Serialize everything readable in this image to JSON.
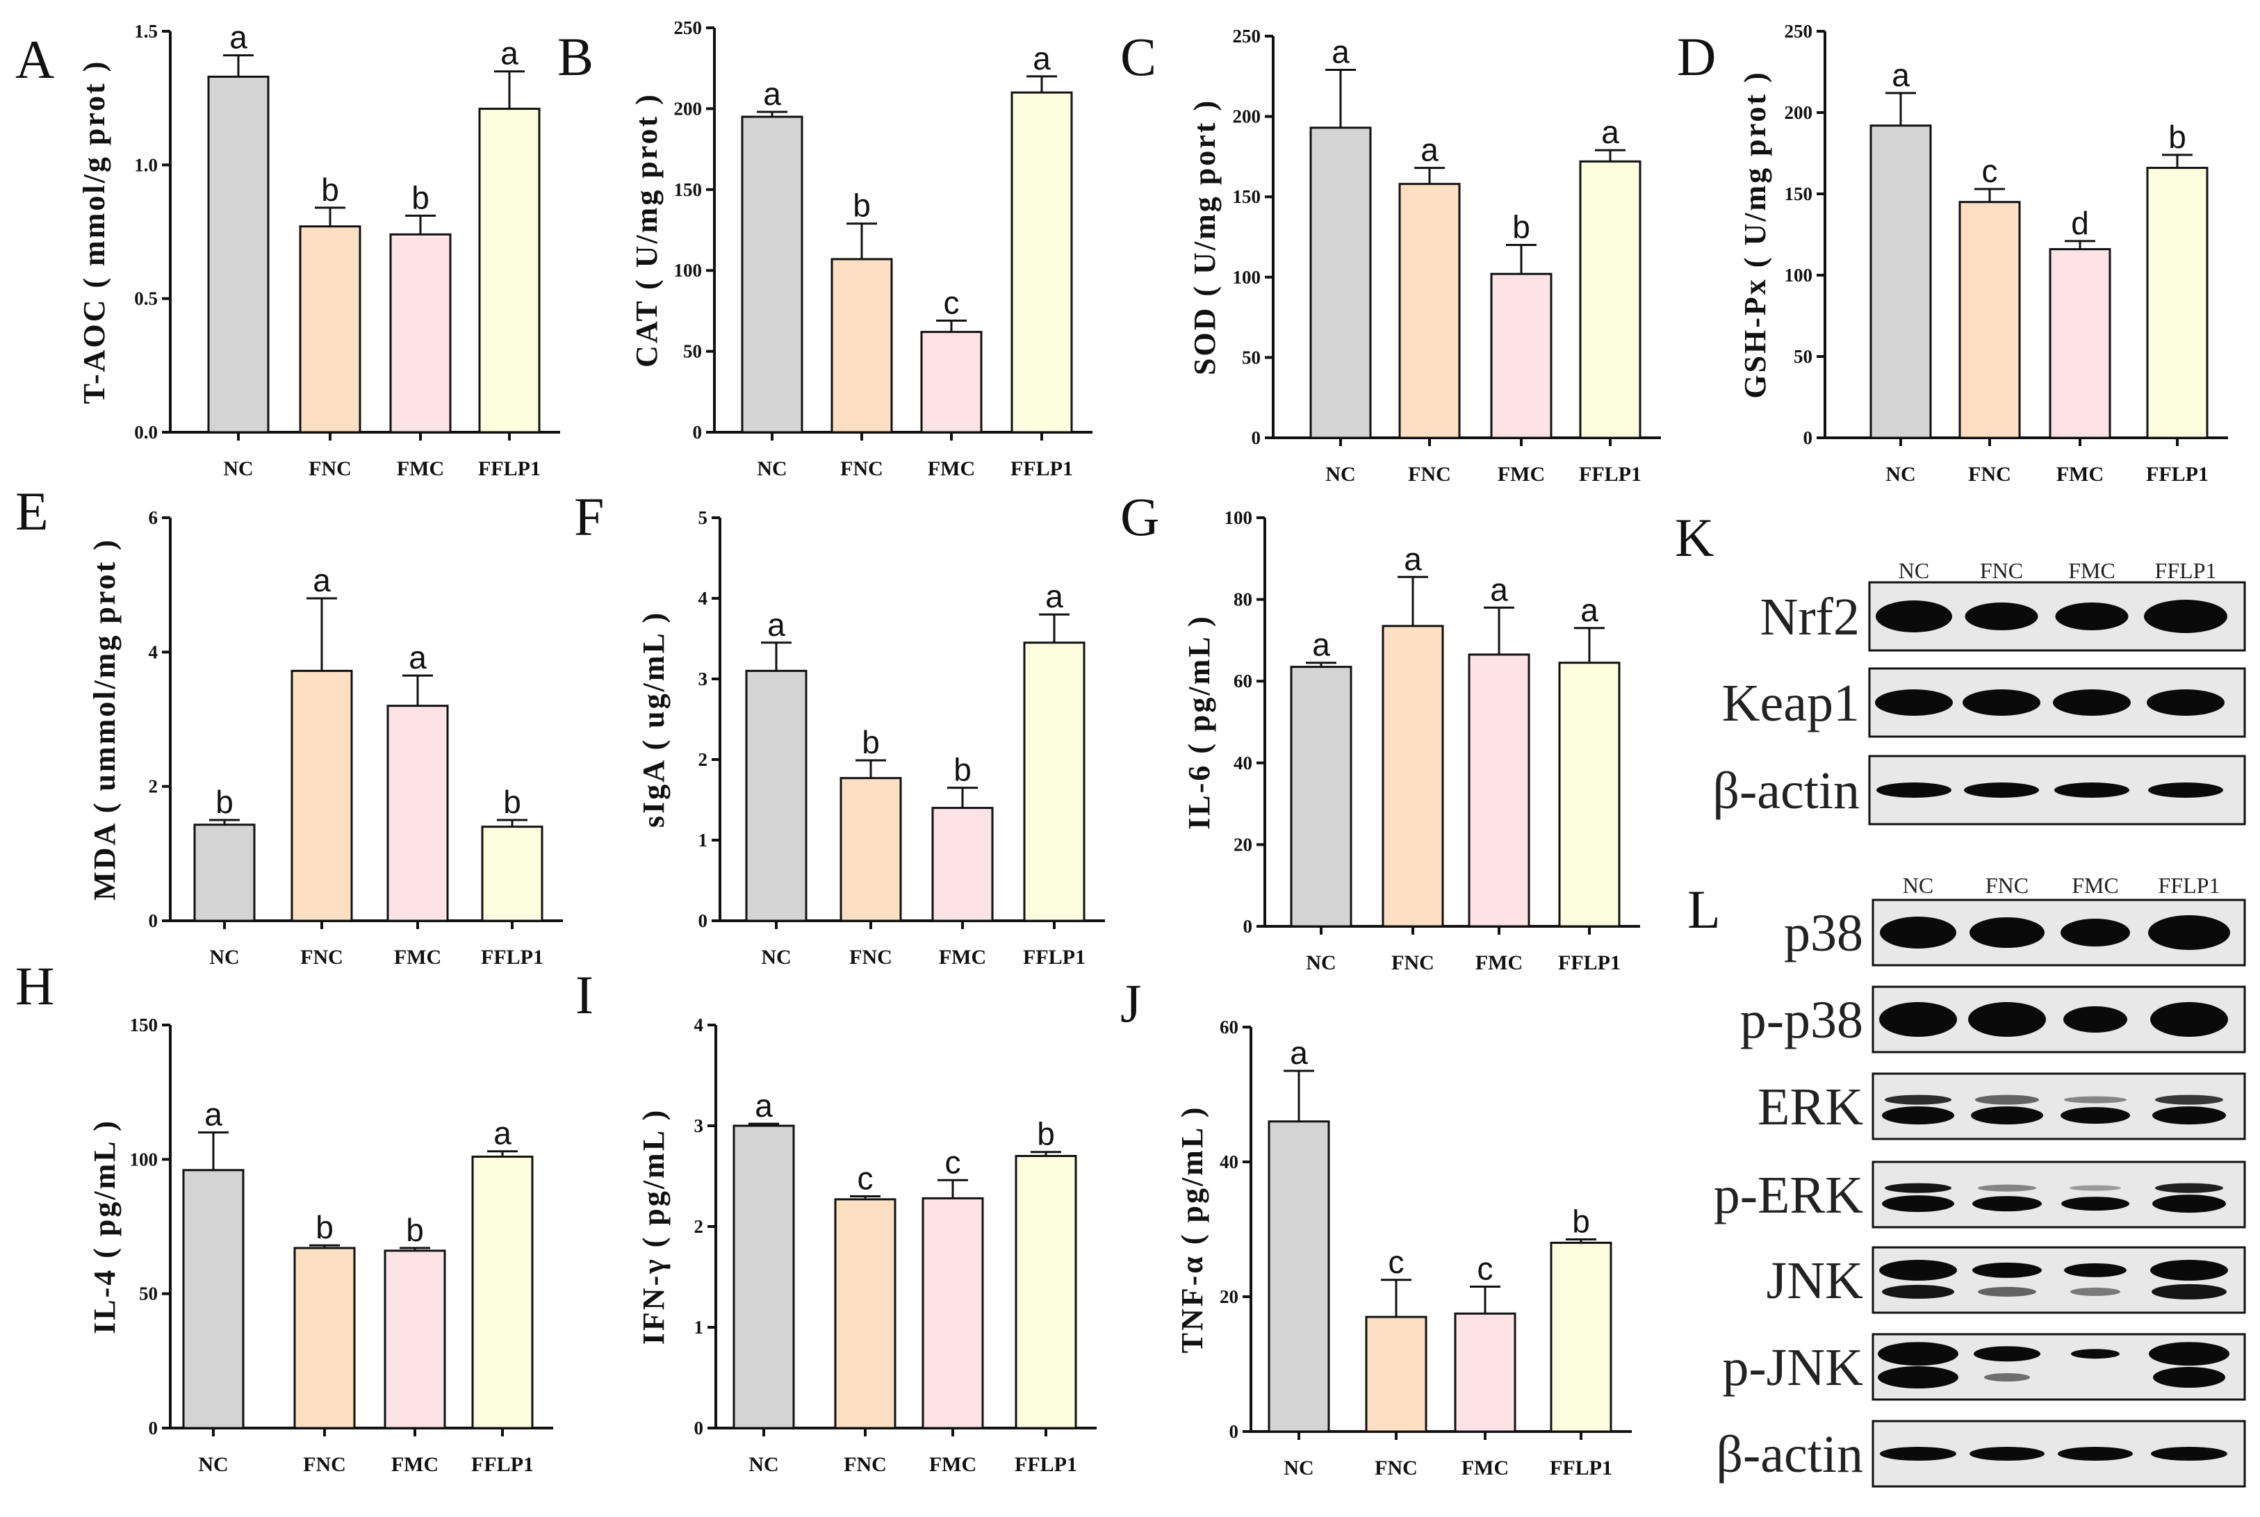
{
  "colors": {
    "NC": "#d4d4d4",
    "FNC": "#fde0c3",
    "FMC": "#fde2e6",
    "FFLP1": "#fdfde0"
  },
  "chart_data": [
    {
      "id": "A",
      "letter": "A",
      "type": "bar",
      "ylabel": "T-AOC ( mmol/g prot )",
      "categories": [
        "NC",
        "FNC",
        "FMC",
        "FFLP1"
      ],
      "ylim": [
        0,
        1.5
      ],
      "yticks": [
        "0.0",
        "0.5",
        "1.0",
        "1.5"
      ],
      "values": [
        1.33,
        0.77,
        0.74,
        1.21
      ],
      "errors": [
        0.08,
        0.07,
        0.07,
        0.14
      ],
      "letters": [
        "a",
        "b",
        "b",
        "a"
      ]
    },
    {
      "id": "B",
      "letter": "B",
      "type": "bar",
      "ylabel": "CAT ( U/mg prot )",
      "categories": [
        "NC",
        "FNC",
        "FMC",
        "FFLP1"
      ],
      "ylim": [
        0,
        250
      ],
      "yticks": [
        "0",
        "50",
        "100",
        "150",
        "200",
        "250"
      ],
      "values": [
        195,
        107,
        62,
        210
      ],
      "errors": [
        3,
        22,
        7,
        10
      ],
      "letters": [
        "a",
        "b",
        "c",
        "a"
      ]
    },
    {
      "id": "C",
      "letter": "C",
      "type": "bar",
      "ylabel": "SOD ( U/mg port )",
      "categories": [
        "NC",
        "FNC",
        "FMC",
        "FFLP1"
      ],
      "ylim": [
        0,
        250
      ],
      "yticks": [
        "0",
        "50",
        "100",
        "150",
        "200",
        "250"
      ],
      "values": [
        193,
        158,
        102,
        172
      ],
      "errors": [
        36,
        10,
        18,
        7
      ],
      "letters": [
        "a",
        "a",
        "b",
        "a"
      ]
    },
    {
      "id": "D",
      "letter": "D",
      "type": "bar",
      "ylabel": "GSH-Px ( U/mg prot )",
      "categories": [
        "NC",
        "FNC",
        "FMC",
        "FFLP1"
      ],
      "ylim": [
        0,
        250
      ],
      "yticks": [
        "0",
        "50",
        "100",
        "150",
        "200",
        "250"
      ],
      "values": [
        192,
        145,
        116,
        166
      ],
      "errors": [
        20,
        8,
        5,
        8
      ],
      "letters": [
        "a",
        "c",
        "d",
        "b"
      ]
    },
    {
      "id": "E",
      "letter": "E",
      "type": "bar",
      "ylabel": "MDA ( ummol/mg prot )",
      "categories": [
        "NC",
        "FNC",
        "FMC",
        "FFLP1"
      ],
      "ylim": [
        0,
        6
      ],
      "yticks": [
        "0",
        "2",
        "4",
        "6"
      ],
      "values": [
        1.43,
        3.72,
        3.2,
        1.4
      ],
      "errors": [
        0.07,
        1.08,
        0.45,
        0.1
      ],
      "letters": [
        "b",
        "a",
        "a",
        "b"
      ]
    },
    {
      "id": "F",
      "letter": "F",
      "type": "bar",
      "ylabel": "sIgA ( ug/mL )",
      "categories": [
        "NC",
        "FNC",
        "FMC",
        "FFLP1"
      ],
      "ylim": [
        0,
        5
      ],
      "yticks": [
        "0",
        "1",
        "2",
        "3",
        "4",
        "5"
      ],
      "values": [
        3.1,
        1.77,
        1.4,
        3.45
      ],
      "errors": [
        0.35,
        0.22,
        0.25,
        0.35
      ],
      "letters": [
        "a",
        "b",
        "b",
        "a"
      ]
    },
    {
      "id": "G",
      "letter": "G",
      "type": "bar",
      "ylabel": "IL-6 ( pg/mL )",
      "categories": [
        "NC",
        "FNC",
        "FMC",
        "FFLP1"
      ],
      "ylim": [
        0,
        100
      ],
      "yticks": [
        "0",
        "20",
        "40",
        "60",
        "80",
        "100"
      ],
      "values": [
        63.5,
        73.5,
        66.5,
        64.5
      ],
      "errors": [
        1,
        12,
        11.5,
        8.5
      ],
      "letters": [
        "a",
        "a",
        "a",
        "a"
      ]
    },
    {
      "id": "H",
      "letter": "H",
      "type": "bar",
      "ylabel": "IL-4 ( pg/mL )",
      "categories": [
        "NC",
        "FNC",
        "FMC",
        "FFLP1"
      ],
      "ylim": [
        0,
        150
      ],
      "yticks": [
        "0",
        "50",
        "100",
        "150"
      ],
      "values": [
        96,
        67,
        66,
        101
      ],
      "errors": [
        14,
        1,
        1,
        2
      ],
      "letters": [
        "a",
        "b",
        "b",
        "a"
      ]
    },
    {
      "id": "I",
      "letter": "I",
      "type": "bar",
      "ylabel": "IFN-γ ( pg/mL )",
      "categories": [
        "NC",
        "FNC",
        "FMC",
        "FFLP1"
      ],
      "ylim": [
        0,
        4
      ],
      "yticks": [
        "0",
        "1",
        "2",
        "3",
        "4"
      ],
      "values": [
        3.0,
        2.27,
        2.28,
        2.7
      ],
      "errors": [
        0.02,
        0.03,
        0.18,
        0.04
      ],
      "letters": [
        "a",
        "c",
        "c",
        "b"
      ]
    },
    {
      "id": "J",
      "letter": "J",
      "type": "bar",
      "ylabel": "TNF-α ( pg/mL )",
      "categories": [
        "NC",
        "FNC",
        "FMC",
        "FFLP1"
      ],
      "ylim": [
        0,
        60
      ],
      "yticks": [
        "0",
        "20",
        "40",
        "60"
      ],
      "values": [
        46,
        17,
        17.5,
        28
      ],
      "errors": [
        7.5,
        5.5,
        4,
        0.5
      ],
      "letters": [
        "a",
        "c",
        "c",
        "b"
      ]
    }
  ],
  "blots": [
    {
      "id": "K",
      "letter": "K",
      "lanes": [
        "NC",
        "FNC",
        "FMC",
        "FFLP1"
      ],
      "proteins": [
        "Nrf2",
        "Keap1",
        "β-actin"
      ]
    },
    {
      "id": "L",
      "letter": "L",
      "lanes": [
        "NC",
        "FNC",
        "FMC",
        "FFLP1"
      ],
      "proteins": [
        "p38",
        "p-p38",
        "ERK",
        "p-ERK",
        "JNK",
        "p-JNK",
        "β-actin"
      ]
    }
  ]
}
